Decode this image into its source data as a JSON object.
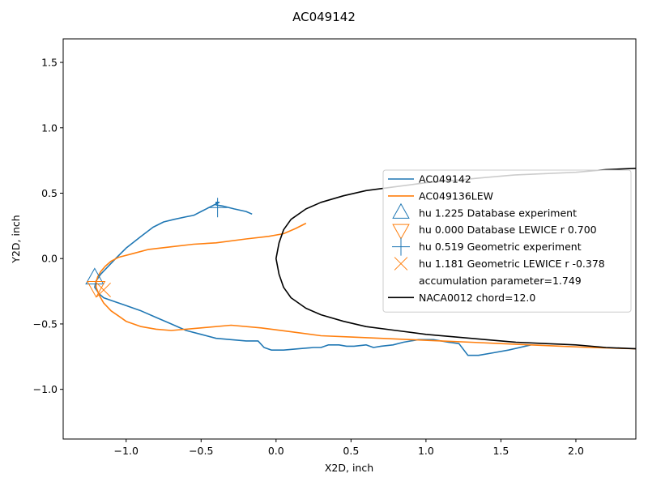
{
  "chart_data": {
    "type": "line",
    "title": "AC049142",
    "xlabel": "X2D, inch",
    "ylabel": "Y2D, inch",
    "xlim": [
      -1.42,
      2.4
    ],
    "ylim": [
      -1.38,
      1.68
    ],
    "xticks": [
      -1.0,
      -0.5,
      0.0,
      0.5,
      1.0,
      1.5,
      2.0
    ],
    "xtick_labels": [
      "−1.0",
      "−0.5",
      "0.0",
      "0.5",
      "1.0",
      "1.5",
      "2.0"
    ],
    "yticks": [
      -1.0,
      -0.5,
      0.0,
      0.5,
      1.0,
      1.5
    ],
    "ytick_labels": [
      "−1.0",
      "−0.5",
      "0.0",
      "0.5",
      "1.0",
      "1.5"
    ],
    "grid": false,
    "legend_position": "center-right",
    "series": [
      {
        "name": "AC049142",
        "color": "#1f77b4",
        "x": [
          -0.16,
          -0.2,
          -0.28,
          -0.35,
          -0.4,
          -0.4,
          -0.38,
          -0.43,
          -0.5,
          -0.55,
          -0.6,
          -0.68,
          -0.75,
          -0.82,
          -0.9,
          -1.0,
          -1.07,
          -1.12,
          -1.17,
          -1.2,
          -1.21,
          -1.18,
          -1.15,
          -1.1,
          -1.0,
          -0.9,
          -0.8,
          -0.7,
          -0.6,
          -0.5,
          -0.4,
          -0.3,
          -0.2,
          -0.12,
          -0.08,
          -0.03,
          0.05,
          0.15,
          0.25,
          0.3,
          0.35,
          0.42,
          0.47,
          0.52,
          0.6,
          0.65,
          0.7,
          0.78,
          0.85,
          0.95,
          1.05,
          1.15,
          1.22,
          1.28,
          1.35,
          1.45,
          1.55,
          1.7
        ],
        "y": [
          0.34,
          0.36,
          0.38,
          0.4,
          0.41,
          0.43,
          0.43,
          0.4,
          0.36,
          0.33,
          0.32,
          0.3,
          0.28,
          0.24,
          0.17,
          0.08,
          0.0,
          -0.06,
          -0.12,
          -0.17,
          -0.22,
          -0.27,
          -0.3,
          -0.32,
          -0.36,
          -0.4,
          -0.45,
          -0.5,
          -0.55,
          -0.58,
          -0.61,
          -0.62,
          -0.63,
          -0.63,
          -0.68,
          -0.7,
          -0.7,
          -0.69,
          -0.68,
          -0.68,
          -0.66,
          -0.66,
          -0.67,
          -0.67,
          -0.66,
          -0.68,
          -0.67,
          -0.66,
          -0.64,
          -0.62,
          -0.62,
          -0.64,
          -0.65,
          -0.74,
          -0.74,
          -0.72,
          -0.7,
          -0.66
        ]
      },
      {
        "name": "AC049136LEW",
        "color": "#ff7f0e",
        "x": [
          0.2,
          0.13,
          0.05,
          -0.05,
          -0.2,
          -0.4,
          -0.55,
          -0.7,
          -0.85,
          -0.95,
          -1.05,
          -1.1,
          -1.14,
          -1.17,
          -1.19,
          -1.2,
          -1.2,
          -1.18,
          -1.15,
          -1.1,
          -1.05,
          -1.0,
          -0.9,
          -0.8,
          -0.7,
          -0.5,
          -0.3,
          -0.1,
          0.1,
          0.3,
          0.5,
          0.7,
          0.9,
          1.1,
          1.3,
          1.5,
          1.7,
          1.9,
          2.1,
          2.4
        ],
        "y": [
          0.27,
          0.23,
          0.19,
          0.17,
          0.15,
          0.12,
          0.11,
          0.09,
          0.07,
          0.04,
          0.01,
          -0.02,
          -0.06,
          -0.1,
          -0.14,
          -0.18,
          -0.22,
          -0.28,
          -0.34,
          -0.4,
          -0.44,
          -0.48,
          -0.52,
          -0.54,
          -0.55,
          -0.53,
          -0.51,
          -0.53,
          -0.56,
          -0.59,
          -0.6,
          -0.61,
          -0.62,
          -0.63,
          -0.64,
          -0.65,
          -0.66,
          -0.67,
          -0.68,
          -0.69
        ]
      },
      {
        "name": "NACA0012 chord=12.0",
        "color": "#000000",
        "x": [
          2.4,
          2.2,
          2.0,
          1.8,
          1.6,
          1.4,
          1.2,
          1.0,
          0.8,
          0.6,
          0.45,
          0.3,
          0.2,
          0.1,
          0.05,
          0.02,
          0.0,
          0.02,
          0.05,
          0.1,
          0.2,
          0.3,
          0.45,
          0.6,
          0.8,
          1.0,
          1.2,
          1.4,
          1.6,
          1.8,
          2.0,
          2.2,
          2.4
        ],
        "y": [
          0.69,
          0.68,
          0.66,
          0.65,
          0.64,
          0.62,
          0.6,
          0.58,
          0.55,
          0.52,
          0.48,
          0.43,
          0.38,
          0.3,
          0.22,
          0.12,
          0.0,
          -0.12,
          -0.22,
          -0.3,
          -0.38,
          -0.43,
          -0.48,
          -0.52,
          -0.55,
          -0.58,
          -0.6,
          -0.62,
          -0.64,
          -0.65,
          -0.66,
          -0.68,
          -0.69
        ]
      }
    ],
    "markers": [
      {
        "label": "hu 1.225 Database experiment",
        "shape": "triangle-up",
        "color": "#1f77b4",
        "x": -1.21,
        "y": -0.15
      },
      {
        "label": "hu 0.000 Database LEWICE r 0.700",
        "shape": "triangle-down",
        "color": "#ff7f0e",
        "x": -1.2,
        "y": -0.22
      },
      {
        "label": "hu 0.519 Geometric experiment",
        "shape": "plus",
        "color": "#1f77b4",
        "x": -0.39,
        "y": 0.39
      },
      {
        "label": "hu 1.181 Geometric LEWICE r -0.378",
        "shape": "x",
        "color": "#ff7f0e",
        "x": -1.15,
        "y": -0.24
      }
    ],
    "legend": [
      {
        "label": "AC049142",
        "kind": "line",
        "color": "#1f77b4"
      },
      {
        "label": "AC049136LEW",
        "kind": "line",
        "color": "#ff7f0e"
      },
      {
        "label": "hu 1.225 Database experiment",
        "kind": "triangle-up",
        "color": "#1f77b4"
      },
      {
        "label": "hu 0.000 Database LEWICE r 0.700",
        "kind": "triangle-down",
        "color": "#ff7f0e"
      },
      {
        "label": "hu 0.519 Geometric experiment",
        "kind": "plus",
        "color": "#1f77b4"
      },
      {
        "label": "hu 1.181 Geometric LEWICE r -0.378",
        "kind": "x",
        "color": "#ff7f0e"
      },
      {
        "label": "accumulation parameter=1.749",
        "kind": "none",
        "color": ""
      },
      {
        "label": "NACA0012 chord=12.0",
        "kind": "line",
        "color": "#000000"
      }
    ]
  }
}
